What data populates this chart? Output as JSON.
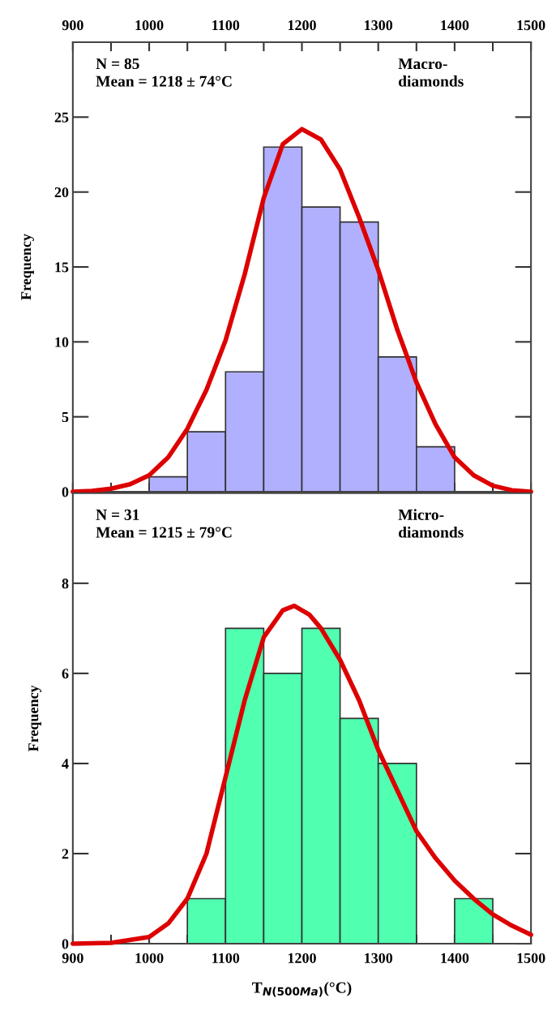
{
  "chart_data": [
    {
      "type": "histogram",
      "ylabel": "Frequency",
      "xlim": [
        900,
        1500
      ],
      "xticks": [
        900,
        {
          "value": 950,
          "label": null
        },
        1000,
        {
          "value": 1050,
          "label": null
        },
        1100,
        {
          "value": 1150,
          "label": null
        },
        1200,
        {
          "value": 1250,
          "label": null
        },
        1300,
        {
          "value": 1350,
          "label": null
        },
        1400,
        {
          "value": 1450,
          "label": null
        },
        1500
      ],
      "ylim": [
        0,
        30
      ],
      "yticks": [
        0,
        5,
        10,
        15,
        20,
        25
      ],
      "annotations": [
        "N = 85\nMean = 1218 ± 74°C",
        "Macro-\ndiamonds"
      ],
      "series": [
        {
          "color": "#b0b0ff",
          "bins": [
            1000,
            1050,
            1100,
            1150,
            1200,
            1250,
            1300,
            1350,
            1400
          ],
          "values": [
            1,
            4,
            8,
            23,
            19,
            18,
            9,
            3
          ]
        },
        {
          "type": "line",
          "color": "#dd0000",
          "x": [
            900,
            925,
            950,
            975,
            1000,
            1025,
            1050,
            1075,
            1100,
            1125,
            1150,
            1175,
            1200,
            1225,
            1250,
            1275,
            1300,
            1325,
            1350,
            1375,
            1400,
            1425,
            1450,
            1475,
            1500
          ],
          "values": [
            0,
            0.05,
            0.2,
            0.5,
            1.1,
            2.3,
            4.2,
            6.8,
            10.1,
            14.5,
            19.6,
            23.2,
            24.2,
            23.5,
            21.5,
            18.3,
            14.8,
            10.8,
            7.3,
            4.5,
            2.3,
            1.1,
            0.4,
            0.1,
            0
          ]
        }
      ]
    },
    {
      "type": "histogram",
      "ylabel": "Frequency",
      "xlabel": "T$_{N(500Ma)}$(°C)",
      "xlim": [
        900,
        1500
      ],
      "xticks": [
        900,
        {
          "value": 950,
          "label": null
        },
        1000,
        {
          "value": 1050,
          "label": null
        },
        1100,
        {
          "value": 1150,
          "label": null
        },
        1200,
        {
          "value": 1250,
          "label": null
        },
        1300,
        {
          "value": 1350,
          "label": null
        },
        1400,
        {
          "value": 1450,
          "label": null
        },
        1500
      ],
      "ylim": [
        0,
        10
      ],
      "yticks": [
        0,
        2,
        4,
        6,
        8
      ],
      "annotations": [
        "N = 31\nMean = 1215 ± 79°C",
        "Micro-\ndiamonds"
      ],
      "series": [
        {
          "color": "#50ffb0",
          "bins": [
            1050,
            1100,
            1150,
            1200,
            1250,
            1300,
            1350,
            1400,
            1450
          ],
          "values": [
            1,
            7,
            6,
            7,
            5,
            4,
            0,
            1
          ]
        },
        {
          "type": "line",
          "color": "#dd0000",
          "x": [
            900,
            950,
            1000,
            1025,
            1050,
            1075,
            1100,
            1125,
            1150,
            1175,
            1190,
            1210,
            1225,
            1250,
            1275,
            1300,
            1325,
            1350,
            1375,
            1400,
            1425,
            1450,
            1475,
            1500
          ],
          "values": [
            0,
            0.02,
            0.15,
            0.45,
            1.0,
            2.0,
            3.7,
            5.4,
            6.8,
            7.4,
            7.5,
            7.3,
            7.0,
            6.3,
            5.4,
            4.3,
            3.4,
            2.5,
            1.9,
            1.4,
            1.0,
            0.65,
            0.4,
            0.2
          ]
        }
      ]
    }
  ]
}
